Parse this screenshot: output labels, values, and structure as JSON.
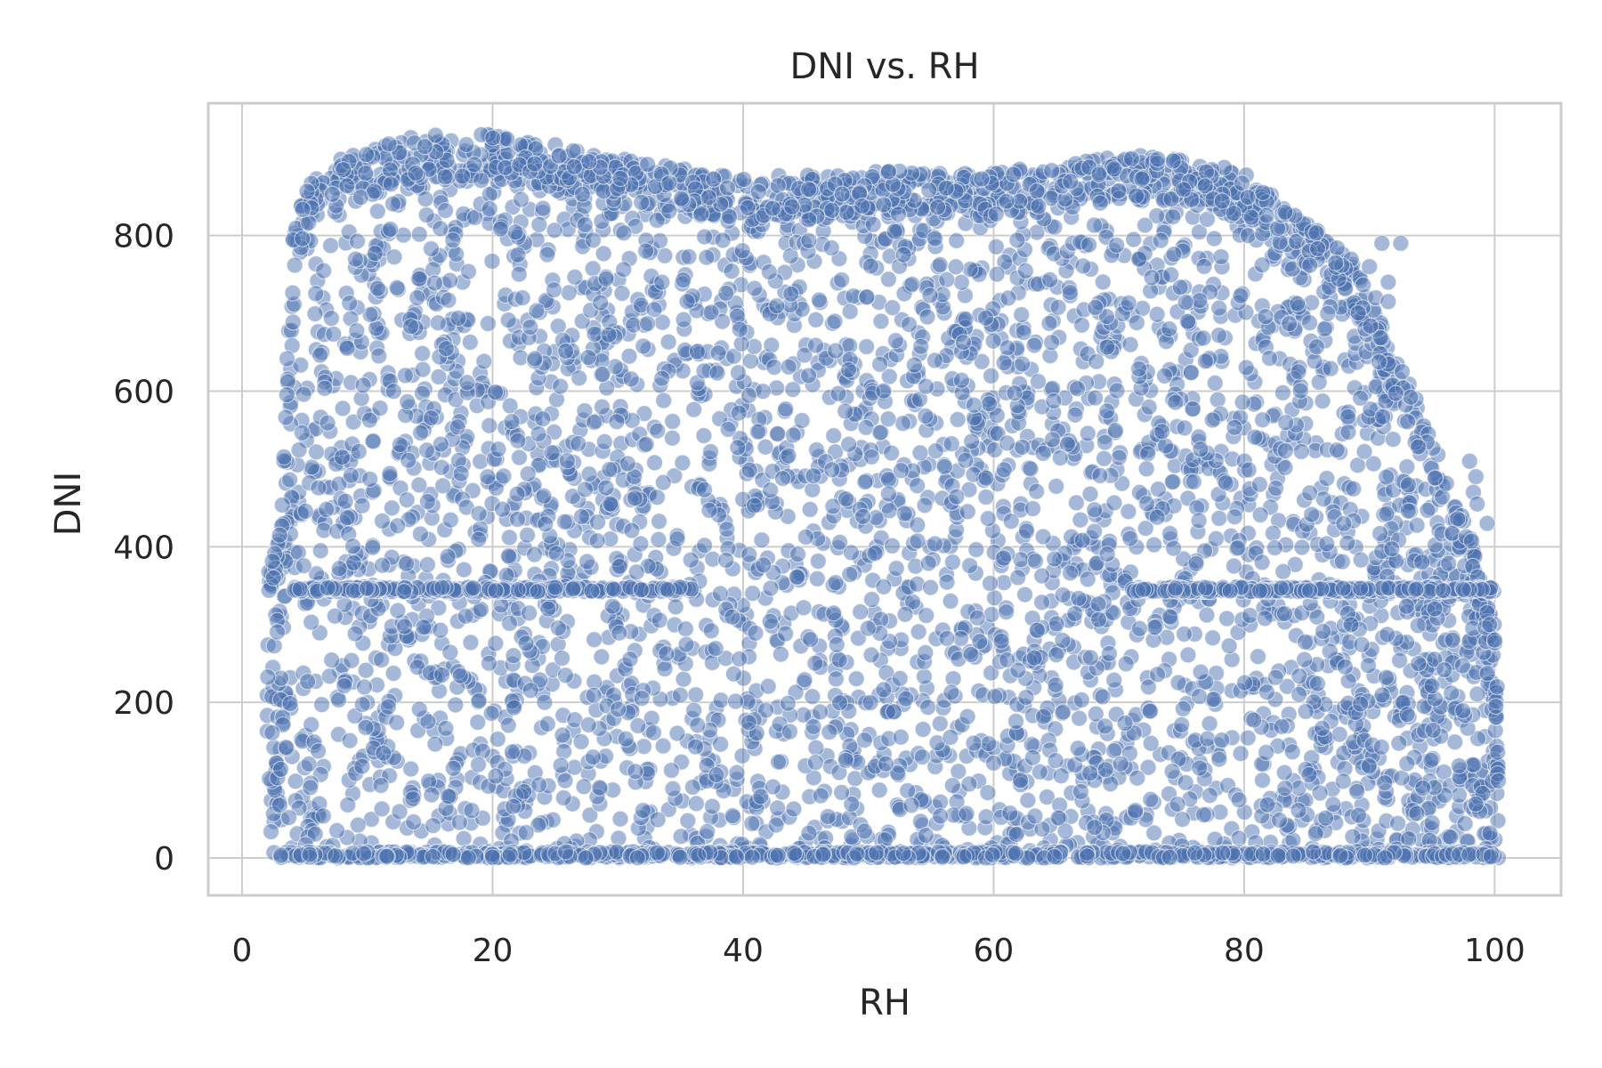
{
  "chart_data": {
    "type": "scatter",
    "title": "DNI vs. RH",
    "xlabel": "RH",
    "ylabel": "DNI",
    "xlim": [
      -2.7,
      105.3
    ],
    "ylim": [
      -48,
      970
    ],
    "xticks": [
      0,
      20,
      40,
      60,
      80,
      100
    ],
    "yticks": [
      0,
      200,
      400,
      600,
      800
    ],
    "grid": true,
    "legend": "none",
    "color": "#4c72b0",
    "marker_alpha": 0.5,
    "envelope": [
      [
        2,
        360
      ],
      [
        3,
        420
      ],
      [
        4,
        800
      ],
      [
        5,
        860
      ],
      [
        6,
        880
      ],
      [
        8,
        900
      ],
      [
        10,
        910
      ],
      [
        14,
        930
      ],
      [
        20,
        930
      ],
      [
        26,
        915
      ],
      [
        30,
        900
      ],
      [
        36,
        885
      ],
      [
        40,
        875
      ],
      [
        46,
        880
      ],
      [
        50,
        885
      ],
      [
        56,
        880
      ],
      [
        60,
        880
      ],
      [
        66,
        895
      ],
      [
        70,
        905
      ],
      [
        76,
        900
      ],
      [
        80,
        880
      ],
      [
        84,
        830
      ],
      [
        88,
        790
      ],
      [
        90,
        720
      ],
      [
        92,
        650
      ],
      [
        94,
        580
      ],
      [
        96,
        500
      ],
      [
        98,
        420
      ],
      [
        99,
        350
      ],
      [
        100,
        300
      ],
      [
        100.3,
        100
      ]
    ],
    "band_value": 345,
    "band_segments": [
      [
        4,
        36
      ],
      [
        71,
        100
      ]
    ],
    "zero_cluster": [
      3,
      100
    ],
    "sample_points": [
      [
        91,
        790
      ],
      [
        92.5,
        790
      ],
      [
        90,
        760
      ],
      [
        91.5,
        740
      ],
      [
        90.5,
        720
      ],
      [
        91.5,
        715
      ],
      [
        98,
        510
      ],
      [
        98.5,
        490
      ],
      [
        98.3,
        470
      ],
      [
        98.6,
        455
      ],
      [
        99.4,
        430
      ],
      [
        99.6,
        300
      ],
      [
        100,
        280
      ],
      [
        100.2,
        220
      ],
      [
        100.1,
        195
      ],
      [
        99,
        345
      ],
      [
        98,
        345
      ],
      [
        97.5,
        345
      ],
      [
        3,
        415
      ],
      [
        2.5,
        360
      ]
    ]
  }
}
